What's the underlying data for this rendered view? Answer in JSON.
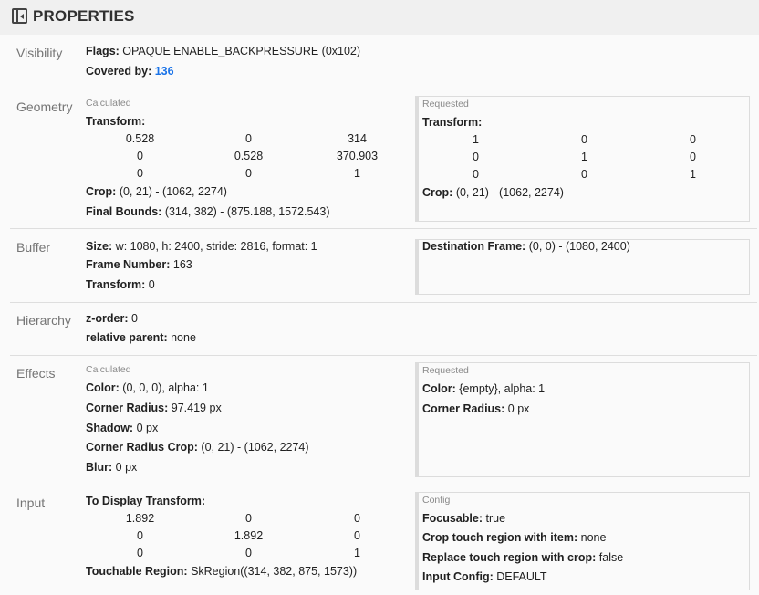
{
  "header": {
    "title": "PROPERTIES",
    "icon": "sidebar-collapse-icon"
  },
  "link_color": "#1a73e8",
  "visibility": {
    "label": "Visibility",
    "flags_key": "Flags:",
    "flags_val": "OPAQUE|ENABLE_BACKPRESSURE (0x102)",
    "covered_key": "Covered by:",
    "covered_val": "136"
  },
  "geometry": {
    "label": "Geometry",
    "calculated": {
      "title": "Calculated",
      "transform_key": "Transform:",
      "matrix": [
        [
          "0.528",
          "0",
          "314"
        ],
        [
          "0",
          "0.528",
          "370.903"
        ],
        [
          "0",
          "0",
          "1"
        ]
      ],
      "crop_key": "Crop:",
      "crop_val": "(0, 21) - (1062, 2274)",
      "bounds_key": "Final Bounds:",
      "bounds_val": "(314, 382) - (875.188, 1572.543)"
    },
    "requested": {
      "title": "Requested",
      "transform_key": "Transform:",
      "matrix": [
        [
          "1",
          "0",
          "0"
        ],
        [
          "0",
          "1",
          "0"
        ],
        [
          "0",
          "0",
          "1"
        ]
      ],
      "crop_key": "Crop:",
      "crop_val": "(0, 21) - (1062, 2274)"
    }
  },
  "buffer": {
    "label": "Buffer",
    "size_key": "Size:",
    "size_val": "w: 1080, h: 2400, stride: 2816, format: 1",
    "frame_key": "Frame Number:",
    "frame_val": "163",
    "transform_key": "Transform:",
    "transform_val": "0",
    "dest_key": "Destination Frame:",
    "dest_val": "(0, 0) - (1080, 2400)"
  },
  "hierarchy": {
    "label": "Hierarchy",
    "z_key": "z-order:",
    "z_val": "0",
    "parent_key": "relative parent:",
    "parent_val": "none"
  },
  "effects": {
    "label": "Effects",
    "calculated": {
      "title": "Calculated",
      "color_key": "Color:",
      "color_val": "(0, 0, 0), alpha: 1",
      "radius_key": "Corner Radius:",
      "radius_val": "97.419 px",
      "shadow_key": "Shadow:",
      "shadow_val": "0 px",
      "crc_key": "Corner Radius Crop:",
      "crc_val": "(0, 21) - (1062, 2274)",
      "blur_key": "Blur:",
      "blur_val": "0 px"
    },
    "requested": {
      "title": "Requested",
      "color_key": "Color:",
      "color_val": "{empty}, alpha: 1",
      "radius_key": "Corner Radius:",
      "radius_val": "0 px"
    }
  },
  "input": {
    "label": "Input",
    "transform_key": "To Display Transform:",
    "matrix": [
      [
        "1.892",
        "0",
        "0"
      ],
      [
        "0",
        "1.892",
        "0"
      ],
      [
        "0",
        "0",
        "1"
      ]
    ],
    "touch_key": "Touchable Region:",
    "touch_val": "SkRegion((314, 382, 875, 1573))",
    "config": {
      "title": "Config",
      "focusable_key": "Focusable:",
      "focusable_val": "true",
      "croptouch_key": "Crop touch region with item:",
      "croptouch_val": "none",
      "replace_key": "Replace touch region with crop:",
      "replace_val": "false",
      "inputcfg_key": "Input Config:",
      "inputcfg_val": "DEFAULT"
    }
  }
}
